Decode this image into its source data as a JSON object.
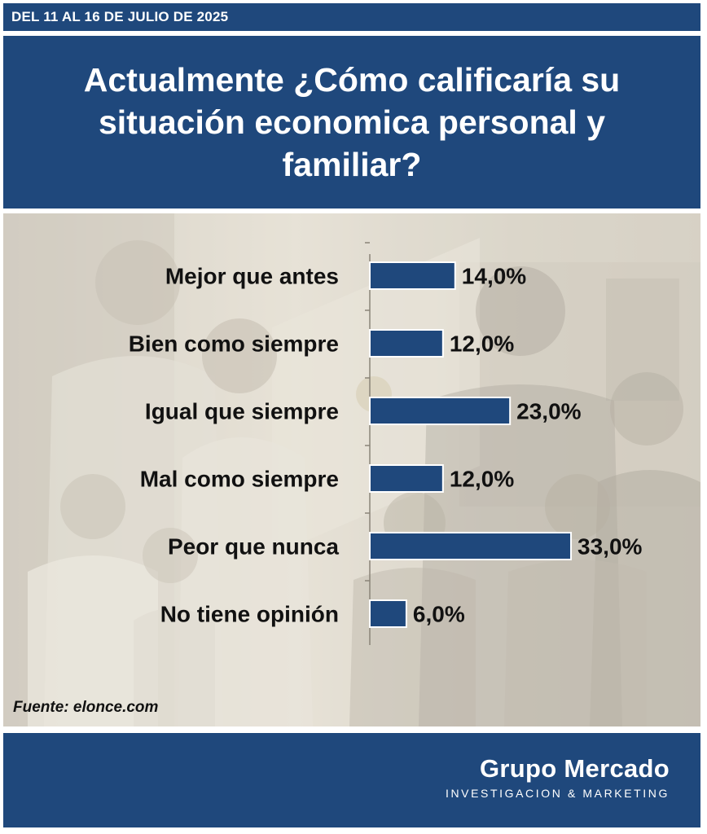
{
  "header": {
    "date_range": "DEL 11 AL 16 DE JULIO DE 2025",
    "title": "Actualmente ¿Cómo calificaría su situación economica personal y familiar?"
  },
  "chart_data": {
    "type": "bar",
    "orientation": "horizontal",
    "categories": [
      "Mejor que antes",
      "Bien como siempre",
      "Igual que siempre",
      "Mal como siempre",
      "Peor que nunca",
      "No tiene opinión"
    ],
    "values": [
      14.0,
      12.0,
      23.0,
      12.0,
      33.0,
      6.0
    ],
    "value_labels": [
      "14,0%",
      "12,0%",
      "23,0%",
      "12,0%",
      "33,0%",
      "6,0%"
    ],
    "unit": "%",
    "xlim": [
      0,
      35
    ],
    "grid": false,
    "legend": "none",
    "bar_color": "#1f487c"
  },
  "source": "Fuente: elonce.com",
  "footer": {
    "brand_name": "Grupo Mercado",
    "brand_tagline": "INVESTIGACION & MARKETING"
  },
  "colors": {
    "brand_blue": "#1f487c",
    "bar_border": "#ffffff",
    "label_text": "#111111"
  }
}
